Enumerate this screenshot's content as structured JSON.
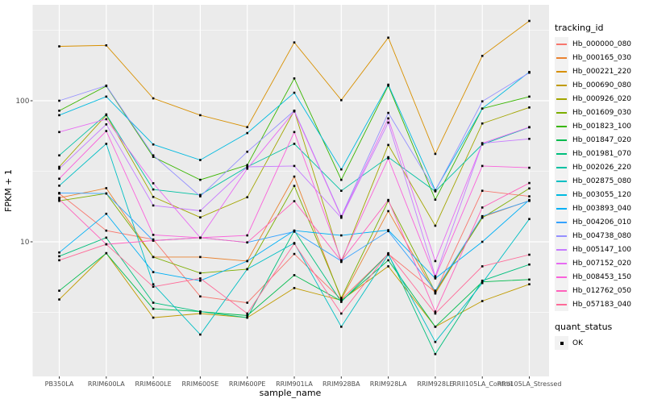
{
  "figure": {
    "panel_bg": "#EBEBEB",
    "grid_color": "#FFFFFF",
    "axis_text_color": "#4D4D4D",
    "tick_color": "#333333",
    "marker_color": "#000000",
    "legend_key_bg": "#F2F2F2"
  },
  "axes": {
    "y_title": "FPKM + 1",
    "x_title": "sample_name",
    "y_ticks": [
      "100",
      "10"
    ],
    "y_tick_values": [
      100,
      10
    ],
    "y_minor_values": [
      316.23,
      31.62,
      3.16
    ]
  },
  "legend": {
    "tracking_title": "tracking_id",
    "quant_title": "quant_status",
    "quant_ok_label": "OK"
  },
  "chart_data": {
    "type": "line",
    "x_type": "categorical",
    "y_scale": "log10",
    "ylabel": "FPKM + 1",
    "xlabel": "sample_name",
    "ylim_log": [
      1.1,
      480
    ],
    "grid": true,
    "legend_position": "right",
    "marker": "black-square",
    "categories": [
      "PB350LA",
      "RRIM600LA",
      "RRIM600LE",
      "RRIM600SE",
      "RRIM600PE",
      "RRIM901LA",
      "RRIM928BA",
      "RRIM928LA",
      "RRIM928LE",
      "RRII105LA_Control",
      "RRII105LA_Stressed"
    ],
    "series": [
      {
        "name": "Hb_000000_080",
        "color": "#F8766D",
        "values": [
          22,
          12,
          10.4,
          4.1,
          3.7,
          8.2,
          3.9,
          8.2,
          4.4,
          23,
          21
        ]
      },
      {
        "name": "Hb_000165_030",
        "color": "#EA8331",
        "values": [
          20.5,
          24,
          7.8,
          7.8,
          7.3,
          29,
          3.9,
          16.5,
          4.3,
          15,
          19.6
        ]
      },
      {
        "name": "Hb_000221_220",
        "color": "#D89000",
        "values": [
          243,
          247,
          104,
          79,
          65,
          259,
          101,
          280,
          42,
          208,
          368
        ]
      },
      {
        "name": "Hb_000690_080",
        "color": "#C09B00",
        "values": [
          3.9,
          8.3,
          2.9,
          3.1,
          2.9,
          4.7,
          3.85,
          6.7,
          2.5,
          3.8,
          5.0
        ]
      },
      {
        "name": "Hb_000926_020",
        "color": "#A3A500",
        "values": [
          34,
          79,
          20.8,
          14.9,
          20.7,
          85,
          7.2,
          48.6,
          13,
          69,
          89.6
        ]
      },
      {
        "name": "Hb_001609_030",
        "color": "#7CAE00",
        "values": [
          19.5,
          22,
          7.8,
          6.0,
          6.4,
          24.9,
          4.0,
          19.5,
          4.4,
          14.8,
          23.9
        ]
      },
      {
        "name": "Hb_001823_100",
        "color": "#39B600",
        "values": [
          85,
          127,
          40,
          27.5,
          35,
          144,
          27.5,
          128,
          19.9,
          88,
          107
        ]
      },
      {
        "name": "Hb_001847_020",
        "color": "#00BB4E",
        "values": [
          4.5,
          8.3,
          3.35,
          3.2,
          3.0,
          5.8,
          3.8,
          7.4,
          2.5,
          5.2,
          5.4
        ]
      },
      {
        "name": "Hb_001981_070",
        "color": "#00BF7D",
        "values": [
          7.9,
          10.7,
          3.7,
          3.2,
          2.9,
          12,
          3.75,
          8.2,
          1.6,
          5.3,
          6.9
        ]
      },
      {
        "name": "Hb_002026_220",
        "color": "#00C1A3",
        "values": [
          41,
          80,
          23.5,
          21.5,
          34,
          49.5,
          23,
          39.8,
          22.8,
          49,
          64.8
        ]
      },
      {
        "name": "Hb_002875_080",
        "color": "#00BFC4",
        "values": [
          25,
          49.5,
          5.0,
          2.2,
          6.4,
          9.8,
          2.5,
          8.1,
          1.95,
          5.1,
          14.5
        ]
      },
      {
        "name": "Hb_003055_120",
        "color": "#00BAE0",
        "values": [
          79,
          107,
          49,
          38,
          59,
          114,
          32.6,
          130,
          23.2,
          88,
          160
        ]
      },
      {
        "name": "Hb_003893_040",
        "color": "#00B0F6",
        "values": [
          8.4,
          15.8,
          6.1,
          5.3,
          7.3,
          12,
          11.1,
          12.1,
          5.5,
          10,
          19.8
        ]
      },
      {
        "name": "Hb_004206_010",
        "color": "#35A2FF",
        "values": [
          22.2,
          22,
          10.2,
          10.7,
          9.9,
          11.8,
          7.3,
          11.9,
          4.5,
          15.2,
          19.5
        ]
      },
      {
        "name": "Hb_004738_080",
        "color": "#9590FF",
        "values": [
          100,
          128,
          41,
          21,
          43.5,
          85,
          15.2,
          82,
          23,
          99,
          158
        ]
      },
      {
        "name": "Hb_005147_100",
        "color": "#C77CFF",
        "values": [
          33,
          68,
          18.1,
          16.6,
          34,
          34.5,
          14.8,
          70,
          5.7,
          50,
          53.7
        ]
      },
      {
        "name": "Hb_007152_020",
        "color": "#E76BF3",
        "values": [
          60,
          74,
          26,
          10.7,
          33,
          84,
          15,
          75,
          7.3,
          50,
          65
        ]
      },
      {
        "name": "Hb_008453_150",
        "color": "#FA62DB",
        "values": [
          28,
          61,
          11.2,
          10.7,
          11.1,
          60,
          7.4,
          39,
          5.6,
          34.5,
          33.5
        ]
      },
      {
        "name": "Hb_012762_050",
        "color": "#FF62BC",
        "values": [
          20,
          9.6,
          10.2,
          10.7,
          9.9,
          19.4,
          7.3,
          19.8,
          3.2,
          17.5,
          26.1
        ]
      },
      {
        "name": "Hb_057183_040",
        "color": "#FF6A98",
        "values": [
          7.4,
          9.6,
          4.8,
          5.5,
          3.1,
          9.7,
          3.1,
          8.3,
          3.1,
          6.7,
          8.1
        ]
      }
    ]
  }
}
